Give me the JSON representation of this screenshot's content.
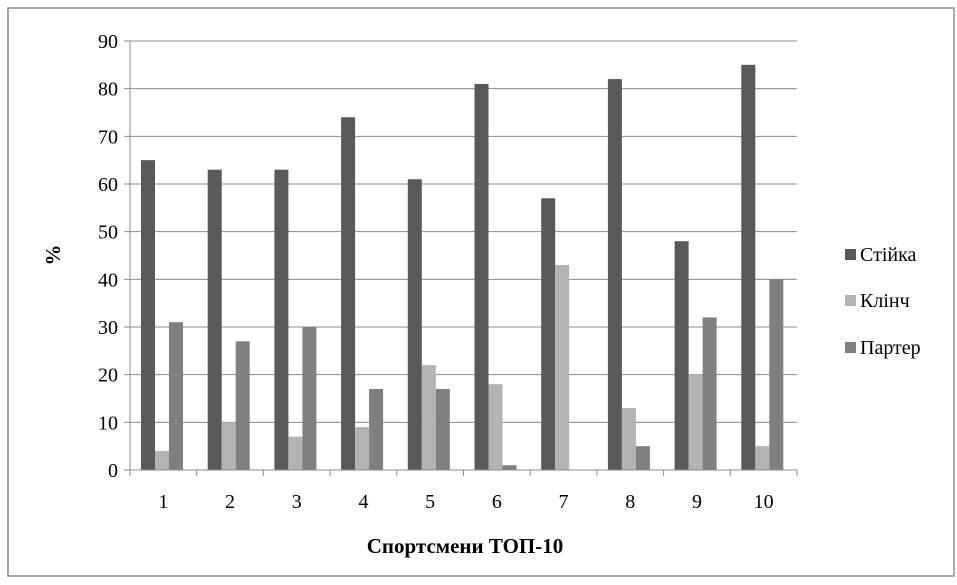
{
  "chart_data": {
    "type": "bar",
    "title": "",
    "xlabel": "Спортсмени ТОП-10",
    "ylabel": "%",
    "categories": [
      "1",
      "2",
      "3",
      "4",
      "5",
      "6",
      "7",
      "8",
      "9",
      "10"
    ],
    "series": [
      {
        "name": "Стійка",
        "color": "#595959",
        "values": [
          65,
          63,
          63,
          74,
          61,
          81,
          57,
          82,
          48,
          85
        ]
      },
      {
        "name": "Клінч",
        "color": "#b3b3b3",
        "values": [
          4,
          10,
          7,
          9,
          22,
          18,
          43,
          13,
          20,
          5
        ]
      },
      {
        "name": "Партер",
        "color": "#7f7f7f",
        "values": [
          31,
          27,
          30,
          17,
          17,
          1,
          0,
          5,
          32,
          40
        ]
      }
    ],
    "ylim": [
      0,
      90
    ],
    "yticks": [
      0,
      10,
      20,
      30,
      40,
      50,
      60,
      70,
      80,
      90
    ],
    "grid": true,
    "legend_position": "right"
  },
  "colors": {
    "border": "#8c8c8c",
    "grid": "#8c8c8c",
    "axis": "#8c8c8c"
  }
}
